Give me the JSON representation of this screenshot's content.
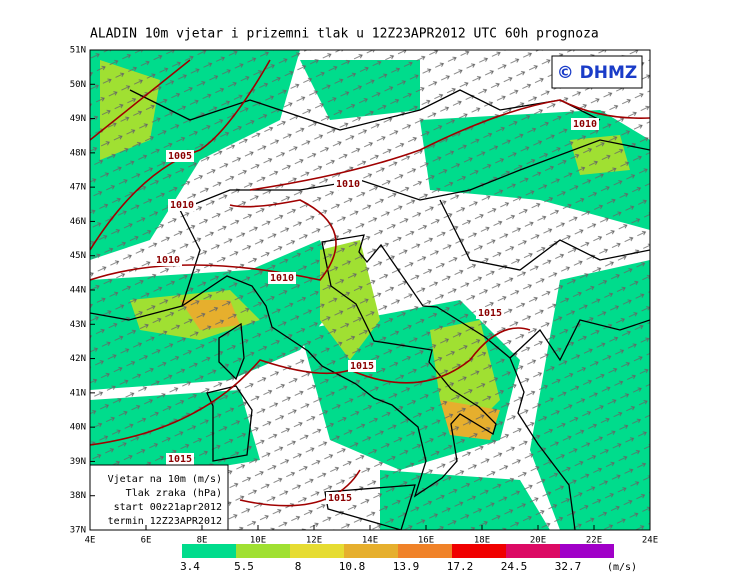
{
  "title": "ALADIN 10m vjetar i prizemni tlak u 12Z23APR2012 UTC 60h prognoza",
  "logo": "© DHMZ",
  "lat_labels": [
    "37N",
    "38N",
    "39N",
    "40N",
    "41N",
    "42N",
    "43N",
    "44N",
    "45N",
    "46N",
    "47N",
    "48N",
    "49N",
    "50N",
    "51N"
  ],
  "lon_labels": [
    "4E",
    "6E",
    "8E",
    "10E",
    "12E",
    "14E",
    "16E",
    "18E",
    "20E",
    "22E",
    "24E"
  ],
  "isobar_labels": [
    "1005",
    "1010",
    "1010",
    "1010",
    "1010",
    "1010",
    "1015",
    "1015",
    "1015",
    "1015"
  ],
  "info_box": [
    "Vjetar na 10m (m/s)",
    "Tlak zraka (hPa)",
    "start 00z21apr2012",
    "termin 12Z23APR2012"
  ],
  "colorbar": {
    "labels": [
      "3.4",
      "5.5",
      "8",
      "10.8",
      "13.9",
      "17.2",
      "24.5",
      "32.7"
    ],
    "colors": [
      "#00dc8c",
      "#a0e032",
      "#e6dc32",
      "#e6af2d",
      "#f08228",
      "#f00000",
      "#dc0a64",
      "#a000c8"
    ],
    "unit": "(m/s)"
  }
}
